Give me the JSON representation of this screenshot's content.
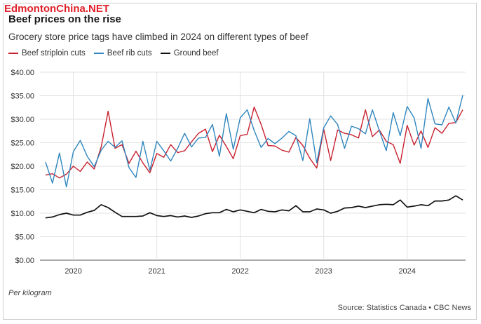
{
  "watermark": "EdmontonChina.NET",
  "chart_data": {
    "type": "line",
    "title": "Beef prices on the rise",
    "subtitle": "Grocery store price tags have climbed in 2024 on different types of beef",
    "ylabel": "",
    "xlabel": "",
    "ylim": [
      0,
      40
    ],
    "y_ticks": [
      0,
      5,
      10,
      15,
      20,
      25,
      30,
      35,
      40
    ],
    "y_tick_labels": [
      "$0.00",
      "$5.00",
      "$10.00",
      "$15.00",
      "$20.00",
      "$25.00",
      "$30.00",
      "$35.00",
      "$40.00"
    ],
    "x_tick_labels": [
      "2020",
      "2021",
      "2022",
      "2023",
      "2024"
    ],
    "x_ticks": [
      2020.0,
      2021.0,
      2022.0,
      2023.0,
      2024.0
    ],
    "xlim": [
      2019.6,
      2024.7
    ],
    "grid": "vertical at year boundaries, horizontal at each tick",
    "legend_position": "top-left",
    "footnote": "Per kilogram",
    "source": "Source: Statistics Canada • CBC News",
    "start_month": "2019-09",
    "series": [
      {
        "name": "Beef striploin cuts",
        "color": "#c8202e",
        "values": [
          18.1,
          18.4,
          17.5,
          18.3,
          20.0,
          18.9,
          20.9,
          19.4,
          24.1,
          31.7,
          23.8,
          24.6,
          20.6,
          23.2,
          20.7,
          18.6,
          22.7,
          21.9,
          24.6,
          22.9,
          23.3,
          25.2,
          27.0,
          27.9,
          23.1,
          26.6,
          24.2,
          21.6,
          26.5,
          26.8,
          32.6,
          28.9,
          24.4,
          24.3,
          23.4,
          23.0,
          26.1,
          24.4,
          21.7,
          19.6,
          27.9,
          21.2,
          27.7,
          27.0,
          26.7,
          26.0,
          32.0,
          26.3,
          27.7,
          25.3,
          24.6,
          20.6,
          28.7,
          24.5,
          27.5,
          24.0,
          28.2,
          27.0,
          29.1,
          29.3,
          32.0
        ]
      },
      {
        "name": "Beef rib cuts",
        "color": "#2f86be",
        "values": [
          20.9,
          16.4,
          22.8,
          15.6,
          23.1,
          25.5,
          22.1,
          19.9,
          23.4,
          25.3,
          24.0,
          25.4,
          19.7,
          17.6,
          25.3,
          19.1,
          25.3,
          23.3,
          21.1,
          23.8,
          27.0,
          24.1,
          26.0,
          26.1,
          28.9,
          22.1,
          31.2,
          23.6,
          30.3,
          32.0,
          27.6,
          24.0,
          25.9,
          24.8,
          26.0,
          27.4,
          26.5,
          21.2,
          30.1,
          20.7,
          28.2,
          30.7,
          28.9,
          23.8,
          28.5,
          28.0,
          26.9,
          32.0,
          27.6,
          23.3,
          31.4,
          26.5,
          32.7,
          30.3,
          23.8,
          34.4,
          29.0,
          28.8,
          32.6,
          29.2,
          35.1
        ]
      },
      {
        "name": "Ground beef",
        "color": "#111111",
        "values": [
          9.0,
          9.2,
          9.7,
          10.0,
          9.6,
          9.6,
          10.2,
          10.6,
          11.8,
          11.2,
          10.2,
          9.3,
          9.3,
          9.3,
          9.4,
          10.1,
          9.5,
          9.3,
          9.5,
          9.2,
          9.4,
          9.1,
          9.4,
          9.9,
          10.1,
          10.1,
          10.8,
          10.3,
          10.7,
          10.4,
          10.1,
          10.8,
          10.4,
          10.3,
          10.7,
          10.5,
          11.6,
          10.3,
          10.3,
          10.9,
          10.7,
          10.0,
          10.4,
          11.1,
          11.2,
          11.5,
          11.2,
          11.5,
          11.8,
          11.9,
          11.8,
          12.8,
          11.3,
          11.5,
          11.8,
          11.6,
          12.6,
          12.6,
          12.8,
          13.7,
          12.8
        ]
      }
    ]
  }
}
